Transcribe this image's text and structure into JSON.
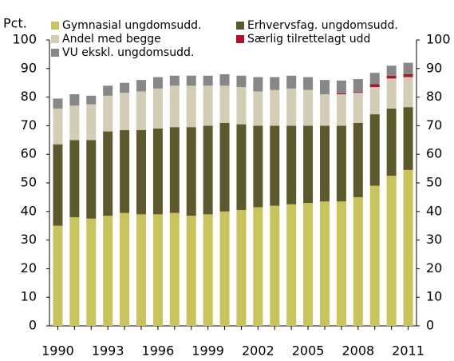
{
  "chart_data": {
    "type": "bar",
    "stacked": true,
    "y_label": "Pct.",
    "categories": [
      "1990",
      null,
      null,
      "1993",
      null,
      null,
      "1996",
      null,
      null,
      "1999",
      null,
      null,
      "2002",
      null,
      null,
      "2005",
      null,
      null,
      "2008",
      null,
      null,
      "2011"
    ],
    "series": [
      {
        "name": "Gymnasial ungdomsudd.",
        "color": "#c8c35a",
        "values": [
          35,
          38,
          37.5,
          38.5,
          39.5,
          39,
          39,
          39.5,
          38.5,
          39,
          40,
          40.5,
          41.5,
          42,
          42.5,
          43,
          43.5,
          43.5,
          45,
          49,
          52.5,
          54.5
        ]
      },
      {
        "name": "Erhvervsfag. ungdomsudd.",
        "color": "#5c5a2c",
        "values": [
          28.5,
          27,
          27.5,
          29.5,
          29,
          29.5,
          30,
          30,
          31,
          31,
          31,
          30,
          28.5,
          28,
          27.5,
          27,
          26.5,
          26.5,
          26,
          25,
          23.5,
          22
        ]
      },
      {
        "name": "Andel med begge",
        "color": "#d3cdb6",
        "values": [
          12.5,
          12,
          12.5,
          12.5,
          13,
          13.5,
          14,
          14.5,
          14.5,
          14,
          13,
          13,
          12,
          12.5,
          13,
          12.5,
          11,
          11,
          10.5,
          9.5,
          10.5,
          10.5
        ]
      },
      {
        "name": "Særlig tilrettelagt udd",
        "color": "#b0122a",
        "values": [
          0,
          0,
          0,
          0,
          0,
          0,
          0,
          0,
          0,
          0,
          0,
          0,
          0,
          0,
          0,
          0,
          0,
          0.3,
          0.3,
          1,
          1,
          1
        ]
      },
      {
        "name": "VU ekskl. ungdomsudd.",
        "color": "#878787",
        "values": [
          3.5,
          4,
          3,
          3.5,
          3.5,
          4,
          4,
          3.5,
          3.5,
          3.5,
          4,
          4,
          5,
          4.5,
          4.5,
          4.5,
          5,
          4.5,
          4.5,
          4,
          3.5,
          4
        ]
      }
    ],
    "ylim": [
      0,
      100
    ],
    "yticks": [
      0,
      10,
      20,
      30,
      40,
      50,
      60,
      70,
      80,
      90,
      100
    ],
    "y2lim": [
      0,
      100
    ],
    "y2ticks": [
      0,
      10,
      20,
      30,
      40,
      50,
      60,
      70,
      80,
      90,
      100
    ]
  }
}
